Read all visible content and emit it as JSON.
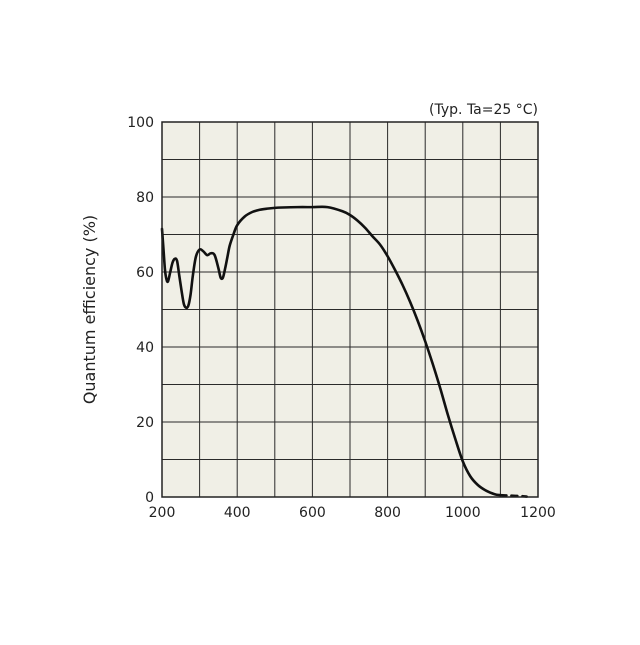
{
  "chart_data": {
    "type": "line",
    "title": "",
    "annotation": "(Typ. Ta=25 °C)",
    "xlabel": "",
    "ylabel": "Quantum efficiency (%)",
    "xlim": [
      200,
      1200
    ],
    "ylim": [
      0,
      100
    ],
    "xticks": [
      200,
      400,
      600,
      800,
      1000,
      1200
    ],
    "yticks": [
      0,
      20,
      40,
      60,
      80,
      100
    ],
    "x_minor_step": 100,
    "y_minor_step": 10,
    "grid": true,
    "background": "#f0efe6",
    "line_color": "#111111",
    "series": [
      {
        "style": "solid",
        "x": [
          200,
          204,
          208,
          212,
          216,
          222,
          228,
          234,
          240,
          246,
          252,
          258,
          264,
          270,
          276,
          282,
          290,
          300,
          310,
          320,
          330,
          340,
          350,
          356,
          362,
          368,
          374,
          380,
          390,
          400,
          420,
          440,
          460,
          480,
          500,
          520,
          560,
          600,
          640,
          680,
          700,
          720,
          740,
          760,
          780,
          800,
          820,
          840,
          860,
          880,
          900,
          920,
          940,
          960,
          980,
          1000,
          1020,
          1040,
          1060,
          1080,
          1090,
          1100
        ],
        "y": [
          71.5,
          66,
          60.5,
          58,
          57.5,
          60,
          62.5,
          63.5,
          63,
          59,
          55,
          51.5,
          50.5,
          51,
          54,
          59,
          64,
          66,
          65.5,
          64.5,
          65,
          64.5,
          61,
          58.5,
          58.5,
          61,
          64,
          67,
          70,
          72.5,
          74.8,
          76,
          76.6,
          76.9,
          77.1,
          77.2,
          77.3,
          77.3,
          77.3,
          76.2,
          75.2,
          73.7,
          71.8,
          69.5,
          67.3,
          64.2,
          60.5,
          56.5,
          52,
          47,
          41.5,
          35.5,
          29,
          22,
          15.5,
          9.5,
          5.5,
          3.2,
          1.8,
          0.9,
          0.6,
          0.5
        ]
      },
      {
        "style": "dashed",
        "x": [
          1100,
          1120,
          1140,
          1160,
          1170
        ],
        "y": [
          0.5,
          0.4,
          0.3,
          0.2,
          0.1
        ]
      }
    ]
  }
}
